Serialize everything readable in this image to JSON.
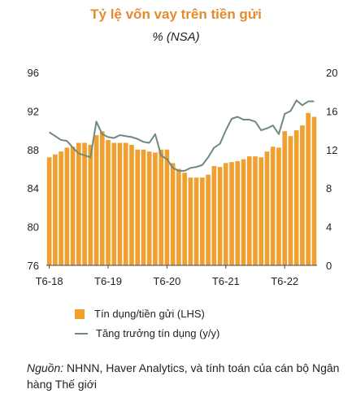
{
  "chart_data": {
    "type": "bar",
    "title": "Tỷ lệ vốn vay trên tiền gửi",
    "subtitle": "% (NSA)",
    "y_left": {
      "range": [
        76,
        96
      ],
      "ticks": [
        "76",
        "80",
        "84",
        "88",
        "92",
        "96"
      ]
    },
    "y_right": {
      "range": [
        0,
        20
      ],
      "ticks": [
        "0",
        "4",
        "8",
        "12",
        "16",
        "20"
      ]
    },
    "x_tick_labels": [
      "T6-18",
      "T6-19",
      "T6-20",
      "T6-21",
      "T6-22"
    ],
    "series": [
      {
        "name": "Tín dụng/tiền gửi (LHS)",
        "kind": "bar",
        "axis": "left",
        "color": "#f0a030",
        "values": [
          87.2,
          87.5,
          87.8,
          88.2,
          88.3,
          88.7,
          88.7,
          88.5,
          89.5,
          89.9,
          89.0,
          88.7,
          88.7,
          88.7,
          88.5,
          88.0,
          88.0,
          87.8,
          87.7,
          88.0,
          88.0,
          86.6,
          86.0,
          85.6,
          85.1,
          85.1,
          85.1,
          85.4,
          86.3,
          86.2,
          86.6,
          86.7,
          86.8,
          87.0,
          87.3,
          87.3,
          87.2,
          87.8,
          88.3,
          88.2,
          89.9,
          89.4,
          90.0,
          90.5,
          91.8,
          91.4
        ]
      },
      {
        "name": "Tăng trưởng tín dụng (y/y)",
        "kind": "line",
        "axis": "right",
        "color": "#6f8a7c",
        "values": [
          13.8,
          13.4,
          13.0,
          12.9,
          12.2,
          11.6,
          11.4,
          11.2,
          14.9,
          13.6,
          13.3,
          13.2,
          13.5,
          13.4,
          13.3,
          13.1,
          12.8,
          12.7,
          13.6,
          11.4,
          11.0,
          10.1,
          9.8,
          9.8,
          10.1,
          10.2,
          10.4,
          11.2,
          12.2,
          12.6,
          14.0,
          15.2,
          15.4,
          15.1,
          15.1,
          14.9,
          14.0,
          14.2,
          14.5,
          13.6,
          15.7,
          16.0,
          17.1,
          16.6,
          17.0,
          17.0
        ]
      }
    ],
    "grid": false,
    "legend_position": "bottom"
  },
  "legend": [
    {
      "label": "Tín dụng/tiền gửi (LHS)",
      "color": "#f0a030"
    },
    {
      "label": "Tăng trưởng tín dụng (y/y)",
      "color": "#6f8a7c"
    }
  ],
  "source": {
    "prefix": "Nguồn:",
    "text": " NHNN, Haver Analytics, và tính toán của cán bộ Ngân hàng Thế giới"
  }
}
